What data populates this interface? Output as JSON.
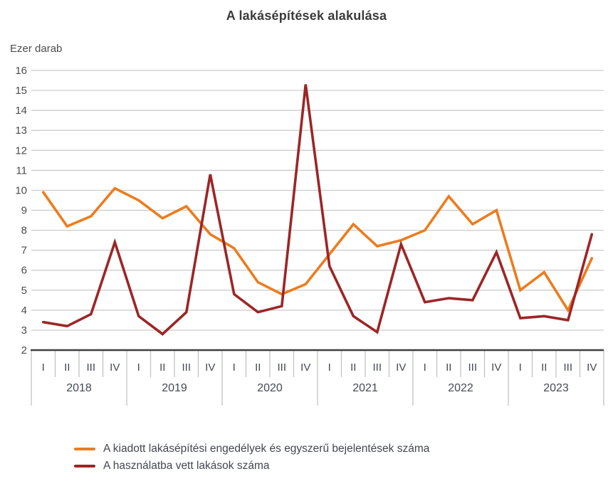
{
  "title": "A lakásépítések alakulása",
  "unit_label": "Ezer darab",
  "colors": {
    "permits_line": "#ec7c1e",
    "completions_line": "#9c2626",
    "grid": "#c9c9c9",
    "axis": "#3f3f3f",
    "tick": "#c2c2c2",
    "axis_text": "#4d4d4d",
    "category_text": "#434a54",
    "title_text": "#3b3b3b"
  },
  "chart_data": {
    "type": "line",
    "title": "A lakásépítések alakulása",
    "xlabel": "",
    "ylabel": "Ezer darab",
    "ylim": [
      2,
      16
    ],
    "ytick_step": 1,
    "grid": true,
    "legend_position": "bottom",
    "years": [
      "2018",
      "2019",
      "2020",
      "2021",
      "2022",
      "2023"
    ],
    "quarter_labels": [
      "I",
      "II",
      "III",
      "IV"
    ],
    "categories": [
      "2018 I",
      "2018 II",
      "2018 III",
      "2018 IV",
      "2019 I",
      "2019 II",
      "2019 III",
      "2019 IV",
      "2020 I",
      "2020 II",
      "2020 III",
      "2020 IV",
      "2021 I",
      "2021 II",
      "2021 III",
      "2021 IV",
      "2022 I",
      "2022 II",
      "2022 III",
      "2022 IV",
      "2023 I",
      "2023 II",
      "2023 III",
      "2023 IV"
    ],
    "series": [
      {
        "name": "A kiadott lakásépítési engedélyek és egyszerű bejelentések száma",
        "color": "#ec7c1e",
        "values": [
          9.9,
          8.2,
          8.7,
          10.1,
          9.5,
          8.6,
          9.2,
          7.8,
          7.1,
          5.4,
          4.8,
          5.3,
          6.8,
          8.3,
          7.2,
          7.5,
          8.0,
          9.7,
          8.3,
          9.0,
          5.0,
          5.9,
          4.0,
          6.6
        ]
      },
      {
        "name": "A használatba vett lakások száma",
        "color": "#9c2626",
        "values": [
          3.4,
          3.2,
          3.8,
          7.4,
          3.7,
          2.8,
          3.9,
          10.8,
          4.8,
          3.9,
          4.2,
          15.3,
          6.2,
          3.7,
          2.9,
          7.3,
          4.4,
          4.6,
          4.5,
          6.9,
          3.6,
          3.7,
          3.5,
          7.8
        ]
      }
    ]
  }
}
